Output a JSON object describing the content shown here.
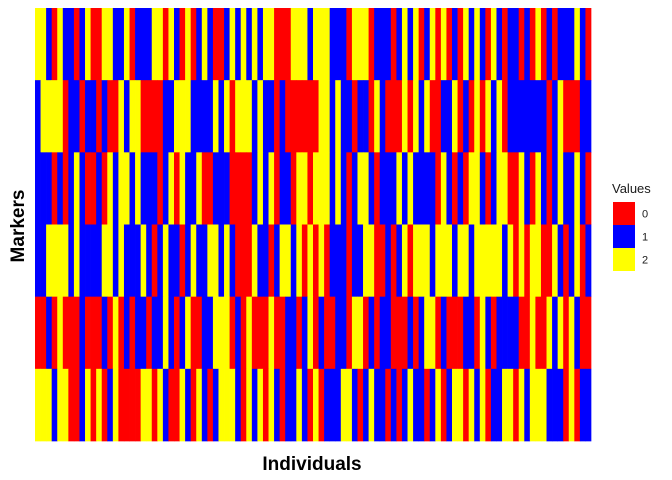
{
  "chart_data": {
    "type": "heatmap",
    "title": "",
    "xlabel": "Individuals",
    "ylabel": "Markers",
    "x_tick_labels": [],
    "y_tick_labels": [],
    "n_individuals": 100,
    "n_markers": 6,
    "values_order": "markers top to bottom; each string lists the genotype of individuals 1..100 left to right",
    "values": [
      "2210211012002211201112202102012100121212122000222122211102220111012120120201021210210110102010111210",
      "1222201101101002122000011222111121202221211010000002212110110210002021200112010202120111111101200011",
      "1110101210010212212111012021120011100001212011022022212101221011121211110210102210122002102101211210",
      "1122221211112212111210121101211221210002110122120202011101122001012022212221221222221202022002101201",
      "0010200010001020101101121012001122201020002001101201001102201011000101220100011021011110020021202100",
      "2221220012020120000220210021021012221021202101121020111221012110101211012012202120112202122211102011"
    ],
    "value_scale": "discrete",
    "legend": {
      "title": "Values",
      "position": "right",
      "entries": [
        {
          "label": "0",
          "color": "#FF0000"
        },
        {
          "label": "1",
          "color": "#0000FF"
        },
        {
          "label": "2",
          "color": "#FFFF00"
        }
      ]
    },
    "grid": false
  }
}
